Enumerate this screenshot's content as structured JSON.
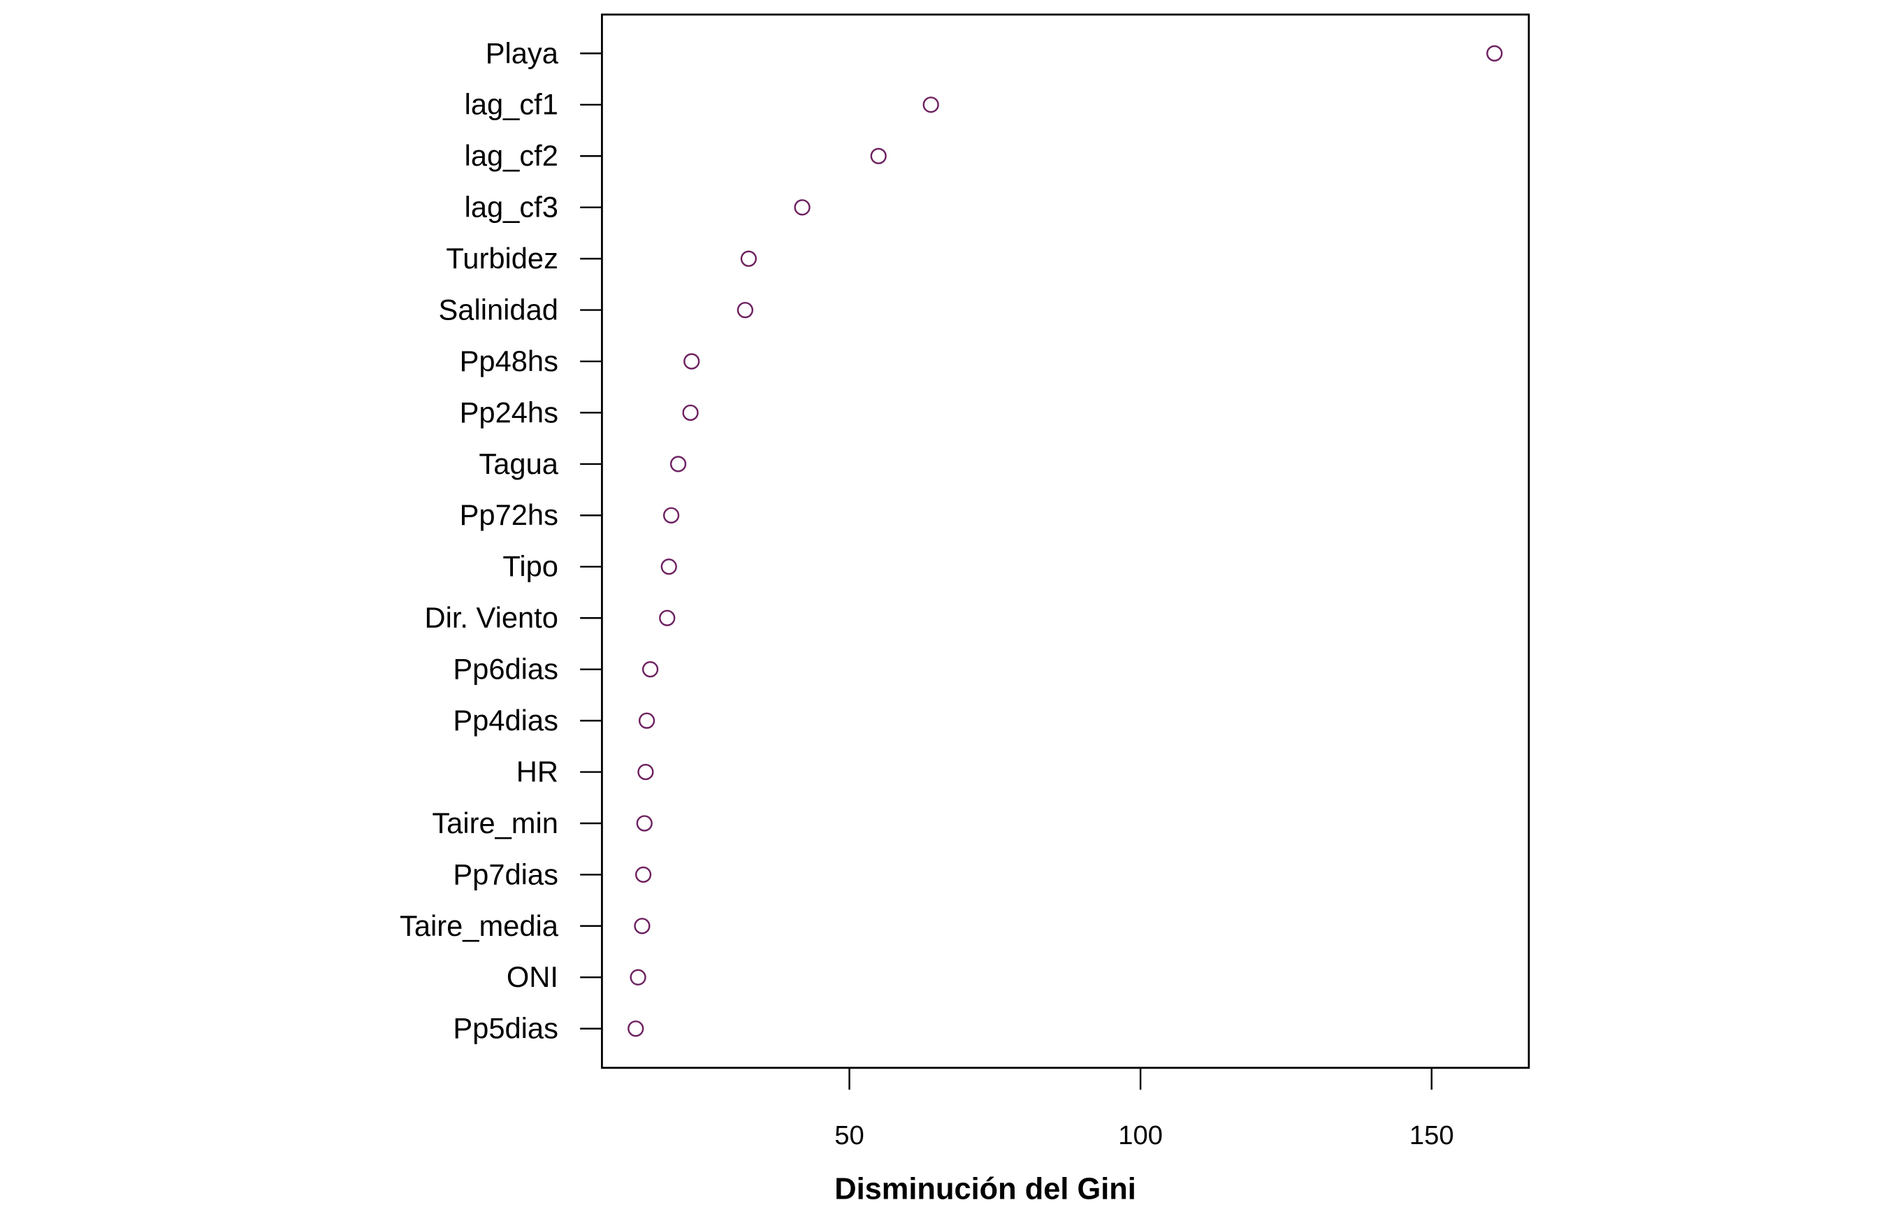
{
  "chart_data": {
    "type": "scatter",
    "subtype": "dotchart",
    "title": "",
    "xlabel": "Disminución del Gini",
    "ylabel": "",
    "xlim": [
      7.5,
      166.7
    ],
    "xticks": [
      50,
      100,
      150
    ],
    "xtick_labels": [
      "50",
      "100",
      "150"
    ],
    "grid": false,
    "point_color": "#6e2160",
    "categories": [
      "Playa",
      "lag_cf1",
      "lag_cf2",
      "lag_cf3",
      "Turbidez",
      "Salinidad",
      "Pp48hs",
      "Pp24hs",
      "Tagua",
      "Pp72hs",
      "Tipo",
      "Dir. Viento",
      "Pp6dias",
      "Pp4dias",
      "HR",
      "Taire_min",
      "Pp7dias",
      "Taire_media",
      "ONI",
      "Pp5dias"
    ],
    "values": [
      160.8,
      64.0,
      55.0,
      41.9,
      32.7,
      32.1,
      22.9,
      22.7,
      20.6,
      19.4,
      19.0,
      18.7,
      15.8,
      15.2,
      15.0,
      14.8,
      14.6,
      14.4,
      13.7,
      13.3
    ]
  }
}
